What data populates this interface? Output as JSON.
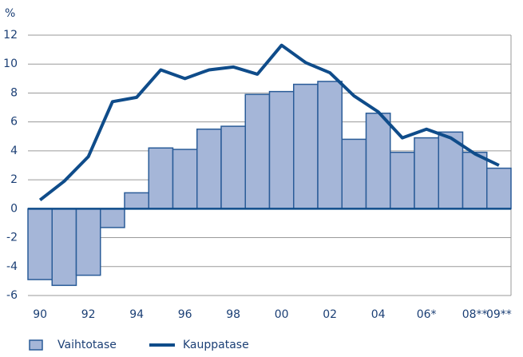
{
  "chart_data": {
    "type": "bar_line",
    "y_label": "%",
    "categories": [
      "90",
      null,
      "92",
      null,
      "94",
      null,
      "96",
      null,
      "98",
      null,
      "00",
      null,
      "02",
      null,
      "04",
      null,
      "06*",
      null,
      "08**",
      "09**"
    ],
    "series": [
      {
        "name": "Vaihtotase",
        "type": "bar",
        "color": "#a5b6d8",
        "values": [
          -4.9,
          -5.3,
          -4.6,
          -1.3,
          1.1,
          4.2,
          4.1,
          5.5,
          5.7,
          7.9,
          8.1,
          8.6,
          8.8,
          4.8,
          6.6,
          3.9,
          4.9,
          5.3,
          3.9,
          2.8
        ]
      },
      {
        "name": "Kauppatase",
        "type": "line",
        "color": "#0f4c8a",
        "values": [
          0.6,
          1.9,
          3.6,
          7.4,
          7.7,
          9.6,
          9.0,
          9.6,
          9.8,
          9.3,
          11.3,
          10.1,
          9.4,
          7.8,
          6.7,
          4.9,
          5.5,
          4.9,
          3.8,
          3.0
        ]
      }
    ],
    "ylim": [
      -6,
      12
    ],
    "yticks": [
      -6,
      -4,
      -2,
      0,
      2,
      4,
      6,
      8,
      10,
      12
    ],
    "grid": true,
    "legend": "bottom"
  }
}
